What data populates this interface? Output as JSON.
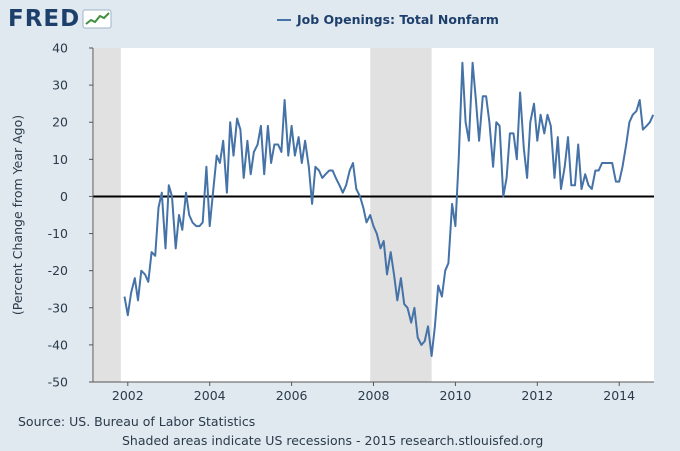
{
  "logo": {
    "text": "FRED",
    "icon": "fred-trend-icon"
  },
  "chart_data": {
    "type": "line",
    "title": "Job Openings: Total Nonfarm",
    "ylabel": "(Percent Change from Year Ago)",
    "xlabel": "",
    "xlim": [
      2001.15,
      2014.85
    ],
    "ylim": [
      -50,
      40
    ],
    "x_ticks": [
      "2002",
      "2004",
      "2006",
      "2008",
      "2010",
      "2012",
      "2014"
    ],
    "y_ticks": [
      "40",
      "30",
      "20",
      "10",
      "0",
      "-10",
      "-20",
      "-30",
      "-40",
      "-50"
    ],
    "recessions": [
      [
        2001.17,
        2001.83
      ],
      [
        2007.92,
        2009.42
      ]
    ],
    "zero_line": true,
    "grid": false,
    "legend": "top-center",
    "colors": {
      "series": "#4572a7",
      "recession": "#e1e1e1",
      "plot_bg": "#ffffff",
      "page_bg": "#e1e9f0"
    },
    "series": [
      {
        "name": "Job Openings: Total Nonfarm",
        "points": [
          [
            2001.92,
            -27
          ],
          [
            2002.0,
            -32
          ],
          [
            2002.08,
            -26
          ],
          [
            2002.17,
            -22
          ],
          [
            2002.25,
            -28
          ],
          [
            2002.33,
            -20
          ],
          [
            2002.42,
            -21
          ],
          [
            2002.5,
            -23
          ],
          [
            2002.58,
            -15
          ],
          [
            2002.67,
            -16
          ],
          [
            2002.75,
            -3
          ],
          [
            2002.83,
            1
          ],
          [
            2002.92,
            -14
          ],
          [
            2003.0,
            3
          ],
          [
            2003.08,
            0
          ],
          [
            2003.17,
            -14
          ],
          [
            2003.25,
            -5
          ],
          [
            2003.33,
            -9
          ],
          [
            2003.42,
            1
          ],
          [
            2003.5,
            -5
          ],
          [
            2003.58,
            -7
          ],
          [
            2003.67,
            -8
          ],
          [
            2003.75,
            -8
          ],
          [
            2003.83,
            -7
          ],
          [
            2003.92,
            8
          ],
          [
            2004.0,
            -8
          ],
          [
            2004.08,
            1
          ],
          [
            2004.17,
            11
          ],
          [
            2004.25,
            9
          ],
          [
            2004.33,
            15
          ],
          [
            2004.42,
            1
          ],
          [
            2004.5,
            20
          ],
          [
            2004.58,
            11
          ],
          [
            2004.67,
            21
          ],
          [
            2004.75,
            18
          ],
          [
            2004.83,
            5
          ],
          [
            2004.92,
            15
          ],
          [
            2005.0,
            6
          ],
          [
            2005.08,
            12
          ],
          [
            2005.17,
            14
          ],
          [
            2005.25,
            19
          ],
          [
            2005.33,
            6
          ],
          [
            2005.42,
            19
          ],
          [
            2005.5,
            9
          ],
          [
            2005.58,
            14
          ],
          [
            2005.67,
            14
          ],
          [
            2005.75,
            12
          ],
          [
            2005.83,
            26
          ],
          [
            2005.92,
            11
          ],
          [
            2006.0,
            19
          ],
          [
            2006.08,
            11
          ],
          [
            2006.17,
            16
          ],
          [
            2006.25,
            9
          ],
          [
            2006.33,
            15
          ],
          [
            2006.42,
            8
          ],
          [
            2006.5,
            -2
          ],
          [
            2006.58,
            8
          ],
          [
            2006.67,
            7
          ],
          [
            2006.75,
            5
          ],
          [
            2006.83,
            6
          ],
          [
            2006.92,
            7
          ],
          [
            2007.0,
            7
          ],
          [
            2007.08,
            5
          ],
          [
            2007.17,
            3
          ],
          [
            2007.25,
            1
          ],
          [
            2007.33,
            3
          ],
          [
            2007.42,
            7
          ],
          [
            2007.5,
            9
          ],
          [
            2007.58,
            2
          ],
          [
            2007.67,
            0
          ],
          [
            2007.75,
            -3
          ],
          [
            2007.83,
            -7
          ],
          [
            2007.92,
            -5
          ],
          [
            2008.0,
            -8
          ],
          [
            2008.08,
            -10
          ],
          [
            2008.17,
            -14
          ],
          [
            2008.25,
            -12
          ],
          [
            2008.33,
            -21
          ],
          [
            2008.42,
            -15
          ],
          [
            2008.5,
            -21
          ],
          [
            2008.58,
            -28
          ],
          [
            2008.67,
            -22
          ],
          [
            2008.75,
            -29
          ],
          [
            2008.83,
            -30
          ],
          [
            2008.92,
            -34
          ],
          [
            2009.0,
            -30
          ],
          [
            2009.08,
            -38
          ],
          [
            2009.17,
            -40
          ],
          [
            2009.25,
            -39
          ],
          [
            2009.33,
            -35
          ],
          [
            2009.42,
            -43
          ],
          [
            2009.5,
            -35
          ],
          [
            2009.58,
            -24
          ],
          [
            2009.67,
            -27
          ],
          [
            2009.75,
            -20
          ],
          [
            2009.83,
            -18
          ],
          [
            2009.92,
            -2
          ],
          [
            2010.0,
            -8
          ],
          [
            2010.08,
            10
          ],
          [
            2010.17,
            36
          ],
          [
            2010.25,
            20
          ],
          [
            2010.33,
            15
          ],
          [
            2010.42,
            36
          ],
          [
            2010.5,
            26
          ],
          [
            2010.58,
            15
          ],
          [
            2010.67,
            27
          ],
          [
            2010.75,
            27
          ],
          [
            2010.83,
            20
          ],
          [
            2010.92,
            8
          ],
          [
            2011.0,
            20
          ],
          [
            2011.08,
            19
          ],
          [
            2011.17,
            0
          ],
          [
            2011.25,
            5
          ],
          [
            2011.33,
            17
          ],
          [
            2011.42,
            17
          ],
          [
            2011.5,
            10
          ],
          [
            2011.58,
            28
          ],
          [
            2011.67,
            13
          ],
          [
            2011.75,
            5
          ],
          [
            2011.83,
            20
          ],
          [
            2011.92,
            25
          ],
          [
            2012.0,
            15
          ],
          [
            2012.08,
            22
          ],
          [
            2012.17,
            17
          ],
          [
            2012.25,
            22
          ],
          [
            2012.33,
            19
          ],
          [
            2012.42,
            5
          ],
          [
            2012.5,
            16
          ],
          [
            2012.58,
            2
          ],
          [
            2012.67,
            8
          ],
          [
            2012.75,
            16
          ],
          [
            2012.83,
            3
          ],
          [
            2012.92,
            3
          ],
          [
            2013.0,
            14
          ],
          [
            2013.08,
            2
          ],
          [
            2013.17,
            6
          ],
          [
            2013.25,
            3
          ],
          [
            2013.33,
            2
          ],
          [
            2013.42,
            7
          ],
          [
            2013.5,
            7
          ],
          [
            2013.58,
            9
          ],
          [
            2013.67,
            9
          ],
          [
            2013.75,
            9
          ],
          [
            2013.83,
            9
          ],
          [
            2013.92,
            4
          ],
          [
            2014.0,
            4
          ],
          [
            2014.08,
            8
          ],
          [
            2014.17,
            14
          ],
          [
            2014.25,
            20
          ],
          [
            2014.33,
            22
          ],
          [
            2014.42,
            23
          ],
          [
            2014.5,
            26
          ],
          [
            2014.58,
            18
          ],
          [
            2014.67,
            19
          ],
          [
            2014.75,
            20
          ],
          [
            2014.83,
            22
          ]
        ]
      }
    ]
  },
  "footer": {
    "source": "Source: US. Bureau of Labor Statistics",
    "note": "Shaded areas indicate US recessions - 2015 research.stlouisfed.org"
  }
}
